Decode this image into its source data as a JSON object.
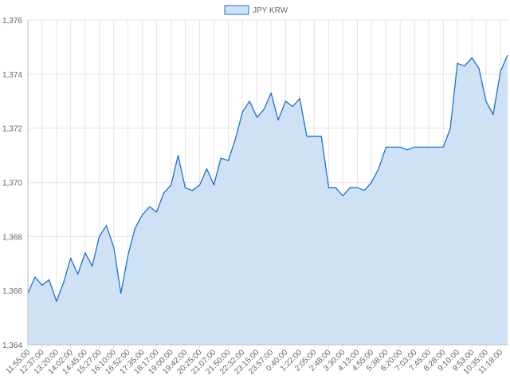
{
  "chart_data": {
    "type": "area",
    "title": "",
    "xlabel": "",
    "ylabel": "",
    "legend": {
      "position": "top-center",
      "entries": [
        "JPY KRW"
      ]
    },
    "grid": true,
    "ylim": [
      1364,
      1376
    ],
    "yticks": [
      "1,364",
      "1,366",
      "1,368",
      "1,370",
      "1,372",
      "1,374",
      "1,376"
    ],
    "x_labels": [
      "11:55:00",
      "12:37:00",
      "13:20:00",
      "14:02:00",
      "14:45:00",
      "15:27:00",
      "16:10:00",
      "16:52:00",
      "17:35:00",
      "18:17:00",
      "19:00:00",
      "19:42:00",
      "20:25:00",
      "21:07:00",
      "21:50:00",
      "22:32:00",
      "23:15:00",
      "23:57:00",
      "0:40:00",
      "1:22:00",
      "2:05:00",
      "2:48:00",
      "3:30:00",
      "4:13:00",
      "4:55:00",
      "5:38:00",
      "6:20:00",
      "7:03:00",
      "7:45:00",
      "8:28:00",
      "9:10:00",
      "9:53:00",
      "10:35:00",
      "11:18:00"
    ],
    "series": [
      {
        "name": "JPY KRW",
        "color": "#1f6fd1",
        "fill": "#cfe2f5",
        "x": [
          "11:55:00",
          "12:16:00",
          "12:37:00",
          "12:58:00",
          "13:20:00",
          "13:41:00",
          "14:02:00",
          "14:23:00",
          "14:45:00",
          "15:06:00",
          "15:27:00",
          "15:48:00",
          "16:10:00",
          "16:31:00",
          "16:52:00",
          "17:13:00",
          "17:35:00",
          "17:56:00",
          "18:17:00",
          "18:38:00",
          "19:00:00",
          "19:21:00",
          "19:42:00",
          "20:03:00",
          "20:25:00",
          "20:46:00",
          "21:07:00",
          "21:28:00",
          "21:50:00",
          "22:11:00",
          "22:32:00",
          "22:53:00",
          "23:15:00",
          "23:36:00",
          "23:57:00",
          "0:18:00",
          "0:40:00",
          "1:01:00",
          "1:22:00",
          "1:43:00",
          "2:05:00",
          "2:26:00",
          "2:48:00",
          "3:09:00",
          "3:30:00",
          "3:51:00",
          "4:13:00",
          "4:34:00",
          "4:55:00",
          "5:16:00",
          "5:38:00",
          "5:59:00",
          "6:20:00",
          "6:41:00",
          "7:03:00",
          "7:24:00",
          "7:45:00",
          "8:06:00",
          "8:28:00",
          "8:49:00",
          "9:10:00",
          "9:31:00",
          "9:53:00",
          "10:14:00",
          "10:35:00",
          "10:56:00",
          "11:18:00",
          "11:39:00"
        ],
        "y": [
          1365.9,
          1366.5,
          1366.2,
          1366.4,
          1365.6,
          1366.3,
          1367.2,
          1366.6,
          1367.4,
          1366.9,
          1368.0,
          1368.4,
          1367.6,
          1365.9,
          1367.3,
          1368.3,
          1368.8,
          1369.1,
          1368.9,
          1369.6,
          1369.9,
          1371.0,
          1369.8,
          1369.7,
          1369.9,
          1370.5,
          1369.9,
          1370.9,
          1370.8,
          1371.6,
          1372.6,
          1373.0,
          1372.4,
          1372.7,
          1373.3,
          1372.3,
          1373.0,
          1372.8,
          1373.1,
          1371.7,
          1371.7,
          1371.7,
          1369.8,
          1369.8,
          1369.5,
          1369.8,
          1369.8,
          1369.7,
          1370.0,
          1370.5,
          1371.3,
          1371.3,
          1371.3,
          1371.2,
          1371.3,
          1371.3,
          1371.3,
          1371.3,
          1371.3,
          1372.0,
          1374.4,
          1374.3,
          1374.6,
          1374.2,
          1373.0,
          1372.5,
          1374.1,
          1374.7
        ]
      }
    ]
  }
}
